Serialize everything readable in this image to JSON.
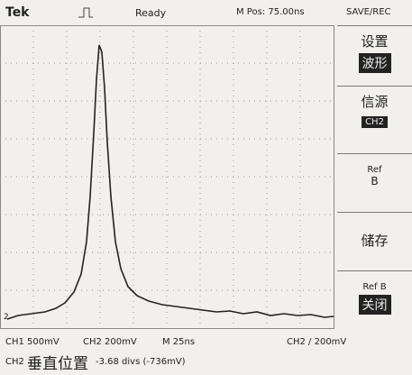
{
  "header": {
    "brand": "Tek",
    "status": "Ready",
    "position": "M Pos: 75.00ns",
    "menu_title": "SAVE/REC"
  },
  "menu": [
    {
      "label": "设置",
      "value": "波形"
    },
    {
      "label": "信源",
      "value": "CH2"
    },
    {
      "label": "Ref",
      "value": "B"
    },
    {
      "label": "储存"
    },
    {
      "label": "Ref B",
      "value": "关闭"
    }
  ],
  "channel_marker": "2",
  "footer": {
    "ch1": "CH1 500mV",
    "ch2": "CH2 200mV",
    "time": "M 25ns",
    "trigger": "CH2 / 200mV",
    "channel": "CH2",
    "action": "垂直位置",
    "offset": "-3.68 divs (-736mV)"
  }
}
